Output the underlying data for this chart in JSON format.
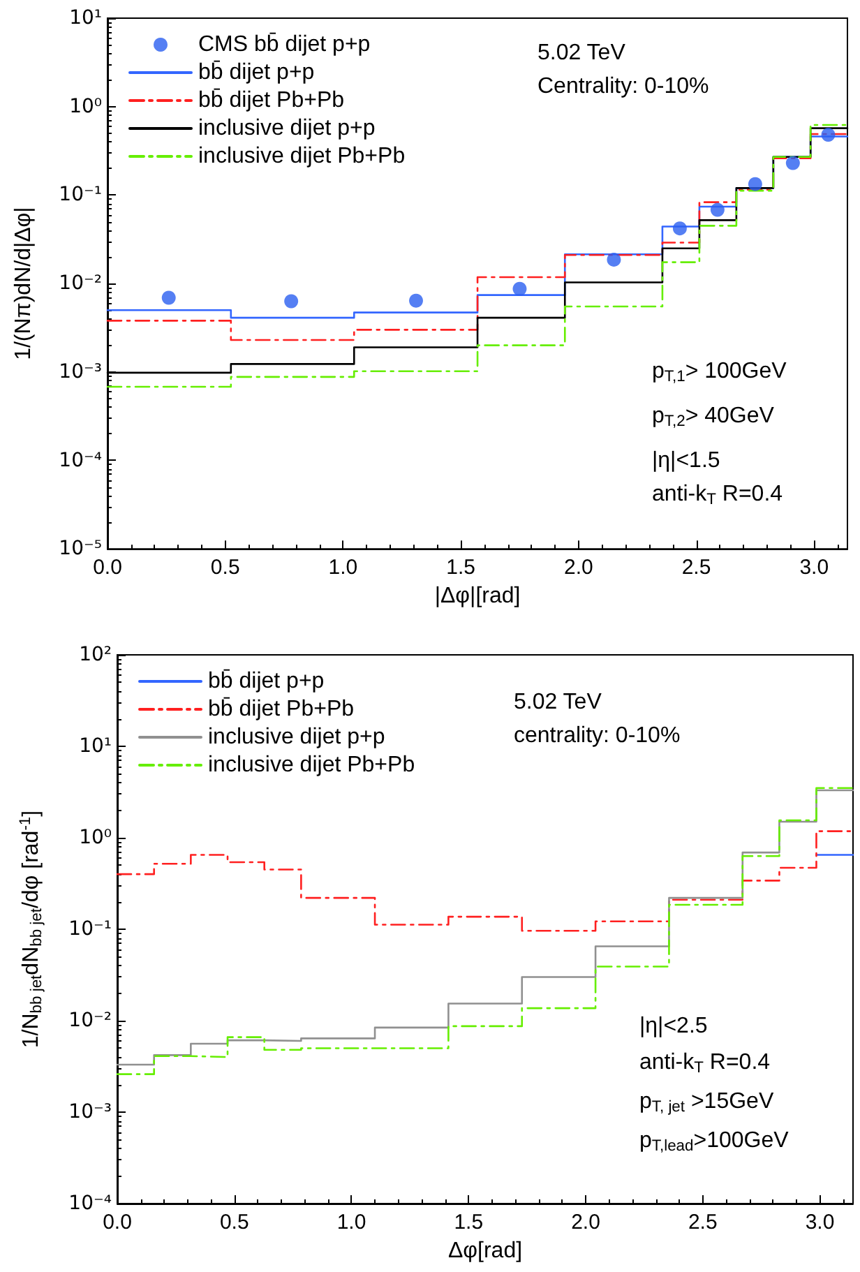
{
  "chart_data": [
    {
      "type": "step",
      "ylabel": "1/(Nπ)dN/d|Δφ|",
      "xlabel": "|Δφ|[rad]",
      "log": true,
      "legend": "top left",
      "xlim": [
        0,
        3.1416
      ],
      "xticks": [
        {
          "value": 0,
          "label": "0.0"
        },
        {
          "value": 0.5,
          "label": "0.5"
        },
        {
          "value": 1,
          "label": "1.0"
        },
        {
          "value": 1.5,
          "label": "1.5"
        },
        {
          "value": 2,
          "label": "2.0"
        },
        {
          "value": 2.5,
          "label": "2.5"
        },
        {
          "value": 3,
          "label": "3.0"
        }
      ],
      "ylim": [
        1e-05,
        10
      ],
      "yticks": [
        {
          "value": 1e-05,
          "label": "10⁻⁵"
        },
        {
          "value": 0.0001,
          "label": "10⁻⁴"
        },
        {
          "value": 0.001,
          "label": "10⁻³"
        },
        {
          "value": 0.01,
          "label": "10⁻²"
        },
        {
          "value": 0.1,
          "label": "10⁻¹"
        },
        {
          "value": 1,
          "label": "10⁰"
        },
        {
          "value": 10,
          "label": "10¹"
        }
      ],
      "annotations": [
        "5.02 TeV",
        "Centrality: 0-10%",
        "p$_{T,1}$> 100GeV",
        "p$_{T,2}$> 40GeV",
        "|η|<1.5",
        "anti-k$_{T}$ R=0.4"
      ],
      "series": [
        {
          "name": "CMS bb̄ dijet p+p",
          "type": "scatter",
          "marker": "circle",
          "color": "#2b5ff0",
          "x": [
            0.26,
            0.78,
            1.31,
            1.75,
            2.15,
            2.43,
            2.59,
            2.75,
            2.91,
            3.06
          ],
          "values": [
            0.0069,
            0.0063,
            0.0064,
            0.0087,
            0.0186,
            0.042,
            0.068,
            0.133,
            0.23,
            0.48
          ]
        },
        {
          "name": "bb̄ dijet p+p",
          "color": "#3366ff",
          "line_style": "solid",
          "x": [
            0,
            0.524,
            1.047,
            1.571,
            1.942,
            2.356,
            2.513,
            2.67,
            2.827,
            2.985,
            3.1416
          ],
          "values": [
            0.005,
            0.0041,
            0.0047,
            0.0074,
            0.0214,
            0.044,
            0.074,
            0.12,
            0.27,
            0.46,
            0.46
          ]
        },
        {
          "name": "bb̄ dijet Pb+Pb",
          "color": "#ff2020",
          "line_style": "dashed",
          "x": [
            0,
            0.524,
            1.047,
            1.571,
            1.942,
            2.356,
            2.513,
            2.67,
            2.827,
            2.985,
            3.1416
          ],
          "values": [
            0.0038,
            0.0023,
            0.003,
            0.0118,
            0.021,
            0.029,
            0.083,
            0.115,
            0.26,
            0.49,
            0.49
          ]
        },
        {
          "name": "inclusive dijet p+p",
          "color": "#000000",
          "line_style": "solid",
          "x": [
            0,
            0.524,
            1.047,
            1.571,
            1.942,
            2.356,
            2.513,
            2.67,
            2.827,
            2.985,
            3.1416
          ],
          "values": [
            0.00098,
            0.00123,
            0.0019,
            0.0041,
            0.0103,
            0.025,
            0.052,
            0.12,
            0.27,
            0.57,
            0.57
          ]
        },
        {
          "name": "inclusive dijet Pb+Pb",
          "color": "#66ee00",
          "line_style": "dashed",
          "x": [
            0,
            0.524,
            1.047,
            1.571,
            1.942,
            2.356,
            2.513,
            2.67,
            2.827,
            2.985,
            3.1416
          ],
          "values": [
            0.00068,
            0.00088,
            0.00102,
            0.002,
            0.0055,
            0.0174,
            0.045,
            0.112,
            0.27,
            0.62,
            0.62
          ]
        }
      ]
    },
    {
      "type": "step",
      "ylabel": "1/N$_{bb jet}$dN$_{bb jet}$/dφ [rad$^{-1}$]",
      "xlabel": "Δφ[rad]",
      "log": true,
      "legend": "top left",
      "xlim": [
        0,
        3.1416
      ],
      "xticks": [
        {
          "value": 0,
          "label": "0.0"
        },
        {
          "value": 0.5,
          "label": "0.5"
        },
        {
          "value": 1,
          "label": "1.0"
        },
        {
          "value": 1.5,
          "label": "1.5"
        },
        {
          "value": 2,
          "label": "2.0"
        },
        {
          "value": 2.5,
          "label": "2.5"
        },
        {
          "value": 3,
          "label": "3.0"
        }
      ],
      "ylim": [
        0.0001,
        100
      ],
      "yticks": [
        {
          "value": 0.0001,
          "label": "10⁻⁴"
        },
        {
          "value": 0.001,
          "label": "10⁻³"
        },
        {
          "value": 0.01,
          "label": "10⁻²"
        },
        {
          "value": 0.1,
          "label": "10⁻¹"
        },
        {
          "value": 1,
          "label": "10⁰"
        },
        {
          "value": 10,
          "label": "10¹"
        },
        {
          "value": 100,
          "label": "10²"
        }
      ],
      "annotations": [
        "5.02 TeV",
        "centrality: 0-10%",
        "|η|<2.5",
        "anti-k$_{T}$ R=0.4",
        "p$_{T, jet}$ >15GeV",
        "p$_{T,lead}$>100GeV"
      ],
      "series": [
        {
          "name": "bb̄ dijet p+p",
          "color": "#3366ff",
          "line_style": "solid",
          "x": [
            2.985,
            3.1416
          ],
          "values": [
            0.65,
            0.65
          ]
        },
        {
          "name": "bb̄ dijet Pb+Pb",
          "color": "#ff2020",
          "line_style": "dashed",
          "x": [
            0,
            0.157,
            0.314,
            0.471,
            0.628,
            0.785,
            1.1,
            1.414,
            1.728,
            2.042,
            2.356,
            2.67,
            2.827,
            2.985,
            3.1416
          ],
          "values": [
            0.4,
            0.52,
            0.65,
            0.54,
            0.45,
            0.22,
            0.112,
            0.137,
            0.096,
            0.122,
            0.21,
            0.34,
            0.47,
            1.18,
            1.18
          ]
        },
        {
          "name": "inclusive dijet p+p",
          "color": "#909090",
          "line_style": "solid",
          "x": [
            0,
            0.157,
            0.314,
            0.471,
            0.628,
            0.785,
            1.1,
            1.414,
            1.728,
            2.042,
            2.356,
            2.67,
            2.827,
            2.985,
            3.1416
          ],
          "values": [
            0.0033,
            0.0042,
            0.0056,
            0.0061,
            0.006,
            0.0064,
            0.0084,
            0.0154,
            0.03,
            0.065,
            0.22,
            0.69,
            1.5,
            3.3,
            3.3
          ]
        },
        {
          "name": "inclusive dijet Pb+Pb",
          "color": "#66ee00",
          "line_style": "dashed",
          "x": [
            0,
            0.157,
            0.314,
            0.471,
            0.628,
            0.785,
            1.1,
            1.414,
            1.728,
            2.042,
            2.356,
            2.67,
            2.827,
            2.985,
            3.1416
          ],
          "values": [
            0.0026,
            0.0041,
            0.004,
            0.0066,
            0.0048,
            0.005,
            0.005,
            0.0087,
            0.0137,
            0.039,
            0.185,
            0.63,
            1.55,
            3.5,
            3.5
          ]
        }
      ]
    }
  ]
}
